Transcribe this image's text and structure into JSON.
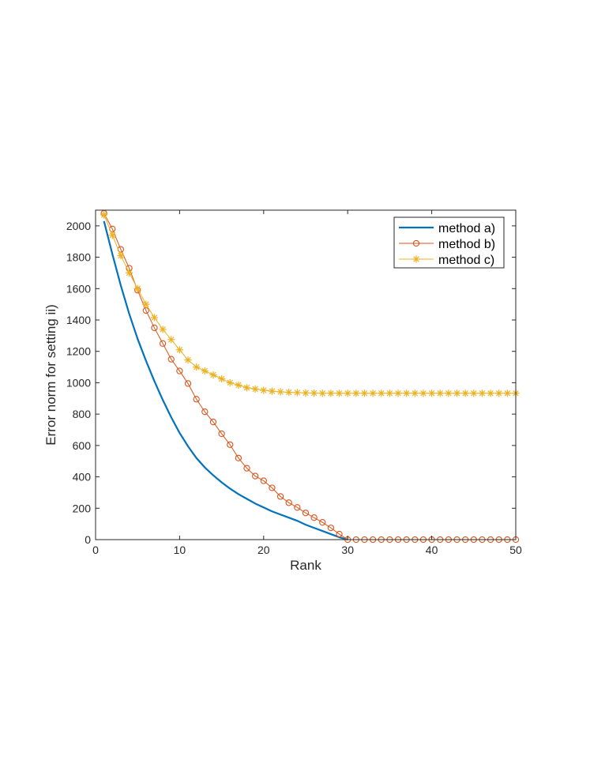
{
  "chart_data": {
    "type": "line",
    "title": "",
    "xlabel": "Rank",
    "ylabel": "Error norm for setting ii)",
    "xlim": [
      0,
      50
    ],
    "ylim": [
      0,
      2100
    ],
    "xticks": [
      0,
      10,
      20,
      30,
      40,
      50
    ],
    "yticks": [
      0,
      200,
      400,
      600,
      800,
      1000,
      1200,
      1400,
      1600,
      1800,
      2000
    ],
    "grid": false,
    "legend_position": "top-right",
    "series": [
      {
        "name": "method a)",
        "color": "#0072BD",
        "marker": "none",
        "x": [
          1,
          2,
          3,
          4,
          5,
          6,
          7,
          8,
          9,
          10,
          11,
          12,
          13,
          14,
          15,
          16,
          17,
          18,
          19,
          20,
          21,
          22,
          23,
          24,
          25,
          26,
          27,
          28,
          29,
          30
        ],
        "values": [
          2030,
          1820,
          1620,
          1440,
          1280,
          1140,
          1010,
          890,
          780,
          680,
          595,
          520,
          460,
          410,
          365,
          325,
          290,
          260,
          230,
          205,
          180,
          160,
          140,
          120,
          95,
          75,
          55,
          35,
          15,
          0
        ]
      },
      {
        "name": "method b)",
        "color": "#D95319",
        "marker": "circle",
        "x": [
          1,
          2,
          3,
          4,
          5,
          6,
          7,
          8,
          9,
          10,
          11,
          12,
          13,
          14,
          15,
          16,
          17,
          18,
          19,
          20,
          21,
          22,
          23,
          24,
          25,
          26,
          27,
          28,
          29,
          30,
          31,
          32,
          33,
          34,
          35,
          36,
          37,
          38,
          39,
          40,
          41,
          42,
          43,
          44,
          45,
          46,
          47,
          48,
          49,
          50
        ],
        "values": [
          2080,
          1980,
          1850,
          1730,
          1590,
          1460,
          1350,
          1250,
          1150,
          1075,
          995,
          895,
          815,
          750,
          675,
          605,
          520,
          455,
          405,
          375,
          330,
          275,
          235,
          205,
          170,
          140,
          110,
          75,
          35,
          0,
          0,
          0,
          0,
          0,
          0,
          0,
          0,
          0,
          0,
          0,
          0,
          0,
          0,
          0,
          0,
          0,
          0,
          0,
          0,
          0
        ]
      },
      {
        "name": "method c)",
        "color": "#EDB120",
        "marker": "asterisk",
        "x": [
          1,
          2,
          3,
          4,
          5,
          6,
          7,
          8,
          9,
          10,
          11,
          12,
          13,
          14,
          15,
          16,
          17,
          18,
          19,
          20,
          21,
          22,
          23,
          24,
          25,
          26,
          27,
          28,
          29,
          30,
          31,
          32,
          33,
          34,
          35,
          36,
          37,
          38,
          39,
          40,
          41,
          42,
          43,
          44,
          45,
          46,
          47,
          48,
          49,
          50
        ],
        "values": [
          2070,
          1940,
          1810,
          1700,
          1600,
          1500,
          1415,
          1340,
          1275,
          1210,
          1145,
          1100,
          1075,
          1050,
          1025,
          1000,
          985,
          968,
          960,
          952,
          946,
          942,
          939,
          937,
          935,
          934,
          933,
          933,
          933,
          933,
          933,
          933,
          933,
          933,
          933,
          933,
          933,
          933,
          933,
          933,
          933,
          933,
          933,
          933,
          933,
          933,
          933,
          933,
          933,
          933
        ]
      }
    ]
  }
}
